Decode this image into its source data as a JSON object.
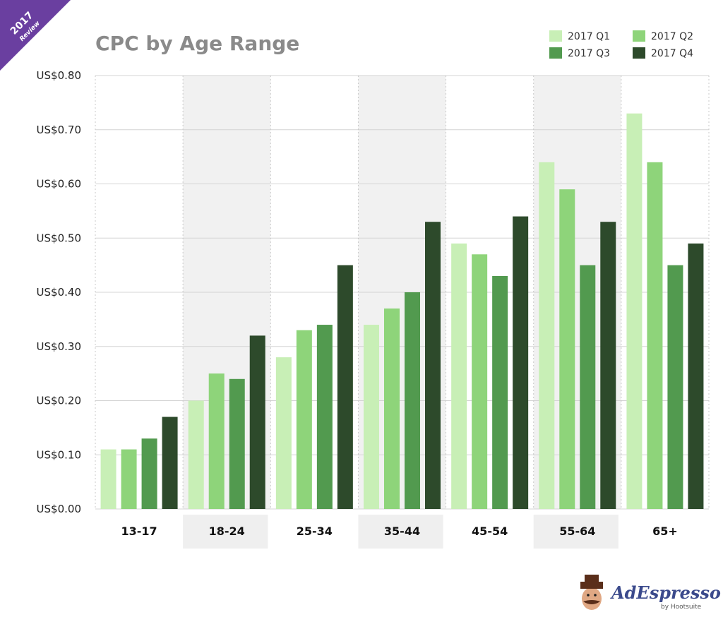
{
  "badge": {
    "year": "2017",
    "label": "Review",
    "color": "#6a3fa0"
  },
  "brand": {
    "name": "AdEspresso",
    "sub": "by Hootsuite"
  },
  "chart_data": {
    "type": "bar",
    "title": "CPC by Age Range",
    "xlabel": "",
    "ylabel": "",
    "ylim": [
      0,
      0.8
    ],
    "yticks": [
      "US$0.00",
      "US$0.10",
      "US$0.20",
      "US$0.30",
      "US$0.40",
      "US$0.50",
      "US$0.60",
      "US$0.70",
      "US$0.80"
    ],
    "ytick_values": [
      0,
      0.1,
      0.2,
      0.3,
      0.4,
      0.5,
      0.6,
      0.7,
      0.8
    ],
    "categories": [
      "13-17",
      "18-24",
      "25-34",
      "35-44",
      "45-54",
      "55-64",
      "65+"
    ],
    "legend_position": "top-right",
    "series": [
      {
        "name": "2017 Q1",
        "color": "#c8efb6",
        "values": [
          0.11,
          0.2,
          0.28,
          0.34,
          0.49,
          0.64,
          0.73
        ]
      },
      {
        "name": "2017 Q2",
        "color": "#8ed47a",
        "values": [
          0.11,
          0.25,
          0.33,
          0.37,
          0.47,
          0.59,
          0.64
        ]
      },
      {
        "name": "2017 Q3",
        "color": "#529a4f",
        "values": [
          0.13,
          0.24,
          0.34,
          0.4,
          0.43,
          0.45,
          0.45
        ]
      },
      {
        "name": "2017 Q4",
        "color": "#2d4a2b",
        "values": [
          0.17,
          0.32,
          0.45,
          0.53,
          0.54,
          0.53,
          0.49
        ]
      }
    ],
    "grid": true
  }
}
